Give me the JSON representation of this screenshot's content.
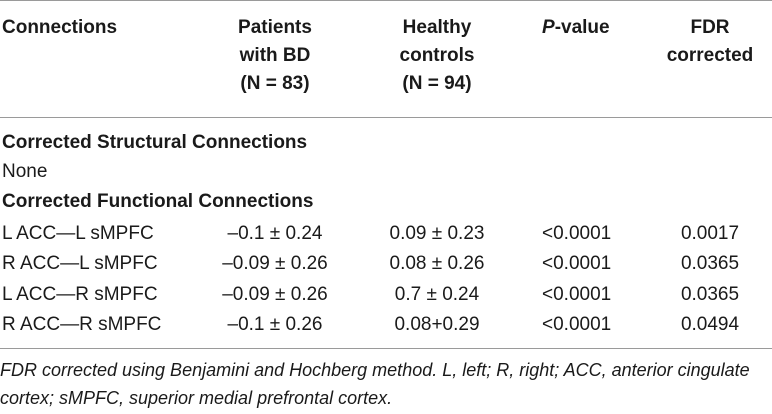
{
  "table": {
    "headers": {
      "connections": "Connections",
      "patients": [
        "Patients",
        "with BD",
        "(N = 83)"
      ],
      "controls": [
        "Healthy",
        "controls",
        "(N = 94)"
      ],
      "pvalue_p": "P",
      "pvalue_rest": "-value",
      "fdr": [
        "FDR",
        "corrected"
      ]
    },
    "sections": {
      "structural_title": "Corrected Structural Connections",
      "structural_none": "None",
      "functional_title": "Corrected Functional Connections"
    },
    "rows": [
      {
        "connection": "L ACC—L sMPFC",
        "patients": "–0.1 ± 0.24",
        "controls": "0.09 ± 0.23",
        "pvalue": "<0.0001",
        "fdr": "0.0017"
      },
      {
        "connection": "R ACC—L sMPFC",
        "patients": "–0.09 ± 0.26",
        "controls": "0.08 ± 0.26",
        "pvalue": "<0.0001",
        "fdr": "0.0365"
      },
      {
        "connection": "L ACC—R sMPFC",
        "patients": "–0.09 ± 0.26",
        "controls": "0.7 ± 0.24",
        "pvalue": "<0.0001",
        "fdr": "0.0365"
      },
      {
        "connection": "R ACC—R sMPFC",
        "patients": "–0.1 ± 0.26",
        "controls": "0.08+0.29",
        "pvalue": "<0.0001",
        "fdr": "0.0494"
      }
    ],
    "footnote": "FDR corrected using Benjamini and Hochberg method. L, left; R, right; ACC, anterior cingulate cortex; sMPFC, superior medial prefrontal cortex."
  }
}
